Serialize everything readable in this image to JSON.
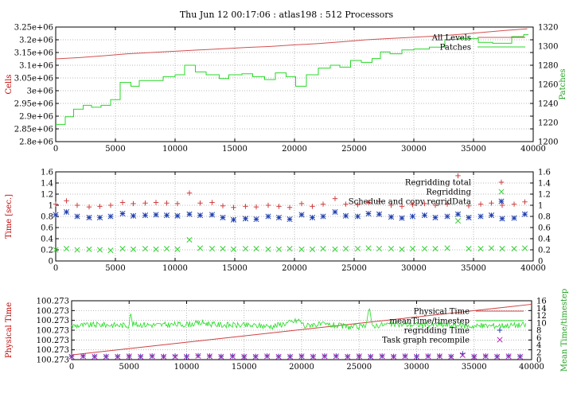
{
  "chart_data": [
    {
      "type": "line",
      "title": "Thu Jun 12 00:17:06 : atlas198 : 512 Processors",
      "ylabel": "Cells",
      "y2label": "Patches",
      "xlim": [
        0,
        40000
      ],
      "ylim": [
        2800000,
        3250000
      ],
      "y2lim": [
        1200,
        1320
      ],
      "x_ticks": [
        "0",
        "5000",
        "10000",
        "15000",
        "20000",
        "25000",
        "30000",
        "35000",
        "40000"
      ],
      "y_ticks": [
        "2.8e+06",
        "2.85e+06",
        "2.9e+06",
        "2.95e+06",
        "3e+06",
        "3.05e+06",
        "3.1e+06",
        "3.15e+06",
        "3.2e+06",
        "3.25e+06"
      ],
      "y2_ticks": [
        "1200",
        "1220",
        "1240",
        "1260",
        "1280",
        "1300",
        "1320"
      ],
      "grid": true,
      "legend": "top-right",
      "colors": {
        "all_levels": "#d45050",
        "patches": "#28d828"
      },
      "series": [
        {
          "name": "All Levels",
          "axis": "y1",
          "color": "#d45050",
          "x": [
            0,
            2000,
            4000,
            6000,
            8000,
            10000,
            12000,
            14000,
            16000,
            18000,
            20000,
            22000,
            24000,
            26000,
            28000,
            30000,
            32000,
            34000,
            36000,
            38000,
            39500
          ],
          "y": [
            3125000,
            3130000,
            3137000,
            3145000,
            3150000,
            3155000,
            3160000,
            3165000,
            3170000,
            3174000,
            3180000,
            3185000,
            3192000,
            3200000,
            3205000,
            3210000,
            3215000,
            3222000,
            3230000,
            3238000,
            3243000
          ]
        },
        {
          "name": "Patches",
          "axis": "y2",
          "color": "#28d828",
          "step": true,
          "x": [
            0,
            800,
            1500,
            2300,
            3000,
            3800,
            4600,
            5400,
            6300,
            7000,
            8000,
            9000,
            10000,
            10800,
            11700,
            12600,
            13700,
            14500,
            15600,
            16500,
            17500,
            18400,
            19300,
            20100,
            21000,
            22000,
            23000,
            23800,
            24700,
            25600,
            26500,
            27200,
            28000,
            29000,
            30000,
            31300,
            32600,
            33800,
            35400,
            36600,
            38200,
            39200
          ],
          "y": [
            1218,
            1226,
            1234,
            1238,
            1236,
            1238,
            1244,
            1262,
            1258,
            1264,
            1264,
            1268,
            1270,
            1280,
            1273,
            1270,
            1266,
            1270,
            1271,
            1268,
            1265,
            1272,
            1268,
            1258,
            1270,
            1277,
            1280,
            1278,
            1285,
            1283,
            1287,
            1294,
            1292,
            1296,
            1297,
            1299,
            1307,
            1308,
            1304,
            1303,
            1310,
            1312
          ]
        }
      ]
    },
    {
      "type": "scatter",
      "ylabel": "Time [sec.]",
      "xlim": [
        0,
        40000
      ],
      "ylim": [
        0,
        1.6
      ],
      "x_ticks": [
        "0",
        "5000",
        "10000",
        "15000",
        "20000",
        "25000",
        "30000",
        "35000",
        "40000"
      ],
      "y_ticks": [
        "0",
        "0.2",
        "0.4",
        "0.6",
        "0.8",
        "1",
        "1.2",
        "1.4",
        "1.6"
      ],
      "grid": true,
      "legend": "top-right",
      "series": [
        {
          "name": "Regridding total",
          "marker": "plus",
          "color": "#d04040",
          "x": [
            0,
            900,
            1800,
            2800,
            3700,
            4600,
            5600,
            6500,
            7500,
            8400,
            9300,
            10200,
            11200,
            12100,
            13100,
            14000,
            14900,
            15900,
            16800,
            17800,
            18700,
            19600,
            20600,
            21500,
            22400,
            23400,
            24300,
            25300,
            26200,
            27100,
            28100,
            29000,
            29900,
            30900,
            31800,
            32800,
            33700,
            34600,
            35600,
            36500,
            37400,
            38400,
            39300
          ],
          "y": [
            1.02,
            1.08,
            1.0,
            0.97,
            0.98,
            1.0,
            1.05,
            1.03,
            1.04,
            1.05,
            1.04,
            1.03,
            1.22,
            1.04,
            1.05,
            0.99,
            0.96,
            0.98,
            0.97,
            1.0,
            0.98,
            0.96,
            1.03,
            0.98,
            1.02,
            1.12,
            1.02,
            1.01,
            1.05,
            1.07,
            1.0,
            0.98,
            1.01,
            1.03,
            1.0,
            1.02,
            1.53,
            0.99,
            1.02,
            1.04,
            1.0,
            1.02,
            1.06
          ]
        },
        {
          "name": "Regridding",
          "marker": "x",
          "color": "#30d030",
          "x": [
            0,
            900,
            1800,
            2800,
            3700,
            4600,
            5600,
            6500,
            7500,
            8400,
            9300,
            10200,
            11200,
            12100,
            13100,
            14000,
            14900,
            15900,
            16800,
            17800,
            18700,
            19600,
            20600,
            21500,
            22400,
            23400,
            24300,
            25300,
            26200,
            27100,
            28100,
            29000,
            29900,
            30900,
            31800,
            32800,
            33700,
            34600,
            35600,
            36500,
            37400,
            38400,
            39300
          ],
          "y": [
            0.2,
            0.22,
            0.2,
            0.21,
            0.2,
            0.19,
            0.22,
            0.21,
            0.22,
            0.21,
            0.22,
            0.21,
            0.38,
            0.23,
            0.22,
            0.22,
            0.21,
            0.22,
            0.22,
            0.21,
            0.21,
            0.22,
            0.21,
            0.21,
            0.22,
            0.21,
            0.22,
            0.22,
            0.23,
            0.22,
            0.22,
            0.21,
            0.22,
            0.22,
            0.22,
            0.23,
            0.72,
            0.22,
            0.22,
            0.23,
            0.22,
            0.22,
            0.23
          ]
        },
        {
          "name": "Schedule and copy regridData",
          "marker": "star",
          "color": "#2040b0",
          "x": [
            0,
            900,
            1800,
            2800,
            3700,
            4600,
            5600,
            6500,
            7500,
            8400,
            9300,
            10200,
            11200,
            12100,
            13100,
            14000,
            14900,
            15900,
            16800,
            17800,
            18700,
            19600,
            20600,
            21500,
            22400,
            23400,
            24300,
            25300,
            26200,
            27100,
            28100,
            29000,
            29900,
            30900,
            31800,
            32800,
            33700,
            34600,
            35600,
            36500,
            37400,
            38400,
            39300
          ],
          "y": [
            0.83,
            0.88,
            0.8,
            0.78,
            0.78,
            0.8,
            0.85,
            0.81,
            0.82,
            0.83,
            0.82,
            0.81,
            0.84,
            0.82,
            0.83,
            0.78,
            0.74,
            0.76,
            0.75,
            0.8,
            0.78,
            0.75,
            0.83,
            0.78,
            0.8,
            0.88,
            0.81,
            0.8,
            0.85,
            0.84,
            0.79,
            0.77,
            0.8,
            0.82,
            0.78,
            0.8,
            0.84,
            0.78,
            0.8,
            0.82,
            0.76,
            0.77,
            0.84
          ]
        }
      ]
    },
    {
      "type": "line",
      "ylabel": "Physical Time",
      "y2label": "Mean Time/timestep",
      "xlim": [
        0,
        40000
      ],
      "ylim": [
        0,
        1
      ],
      "y2lim": [
        0,
        16
      ],
      "x_ticks": [
        "0",
        "5000",
        "10000",
        "15000",
        "20000",
        "25000",
        "30000",
        "35000",
        "40000"
      ],
      "y_ticks": [
        "100.273",
        "100.273",
        "100.273",
        "100.273",
        "100.273",
        "100.273",
        "100.273"
      ],
      "y2_ticks": [
        "0",
        "2",
        "4",
        "6",
        "8",
        "10",
        "12",
        "14",
        "16"
      ],
      "grid": true,
      "legend": "top-right",
      "series": [
        {
          "name": "Physical Time",
          "axis": "y1",
          "color": "#d04040",
          "x": [
            0,
            40000
          ],
          "y": [
            0.08,
            0.94
          ]
        },
        {
          "name": "meanTime/timestep",
          "axis": "y2",
          "color": "#22dd22",
          "noisy": true,
          "x": [
            0,
            2500,
            5000,
            5100,
            5300,
            7500,
            10000,
            11500,
            12500,
            15000,
            17500,
            19800,
            20300,
            20800,
            22500,
            24500,
            25500,
            25900,
            26100,
            26400,
            27500,
            30000,
            32500,
            35000,
            37500,
            39500
          ],
          "y": [
            9.2,
            9.5,
            9.3,
            13.0,
            9.6,
            9.4,
            9.6,
            10.0,
            9.5,
            9.3,
            9.1,
            10.7,
            9.0,
            9.6,
            9.4,
            8.8,
            8.9,
            14.2,
            9.0,
            9.3,
            9.6,
            9.5,
            9.4,
            9.1,
            9.3,
            9.4
          ]
        },
        {
          "name": "regridding Time",
          "axis": "y2",
          "marker": "plus",
          "color": "#2040b0",
          "x": [
            0,
            1000,
            2000,
            3000,
            4000,
            5000,
            6000,
            7000,
            8000,
            9000,
            10000,
            11000,
            12000,
            13000,
            14000,
            15000,
            16000,
            17000,
            18000,
            19000,
            20000,
            21000,
            22000,
            23000,
            24000,
            25000,
            26000,
            27000,
            28000,
            29000,
            30000,
            31000,
            32000,
            33000,
            34000,
            35000,
            36000,
            37000,
            38000,
            39000
          ],
          "y": [
            0.9,
            1.0,
            0.9,
            0.9,
            0.9,
            1.0,
            0.9,
            1.0,
            0.9,
            1.0,
            0.9,
            1.1,
            1.0,
            0.9,
            1.0,
            0.9,
            0.9,
            1.0,
            0.9,
            0.9,
            1.0,
            0.9,
            1.0,
            1.0,
            0.9,
            1.0,
            0.9,
            1.0,
            0.9,
            1.0,
            0.9,
            1.0,
            1.0,
            0.9,
            1.6,
            0.9,
            1.0,
            0.9,
            1.0,
            0.9
          ]
        },
        {
          "name": "Task graph recompile",
          "axis": "y2",
          "marker": "x",
          "color": "#b020b0",
          "x": [
            0,
            1000,
            2000,
            3000,
            4000,
            5000,
            6000,
            7000,
            8000,
            9000,
            10000,
            11000,
            12000,
            13000,
            14000,
            15000,
            16000,
            17000,
            18000,
            19000,
            20000,
            21000,
            22000,
            23000,
            24000,
            25000,
            26000,
            27000,
            28000,
            29000,
            30000,
            31000,
            32000,
            33000,
            34000,
            35000,
            36000,
            37000,
            38000,
            39000
          ],
          "y": [
            0.8,
            0.9,
            0.8,
            0.8,
            0.8,
            0.9,
            0.8,
            0.9,
            0.8,
            0.8,
            0.8,
            1.0,
            0.9,
            0.8,
            0.9,
            0.8,
            0.8,
            0.9,
            0.8,
            0.8,
            0.9,
            0.8,
            0.9,
            0.9,
            0.8,
            0.9,
            0.8,
            0.9,
            0.8,
            0.9,
            0.8,
            0.9,
            0.9,
            0.8,
            1.2,
            0.8,
            0.9,
            0.8,
            0.9,
            0.8
          ]
        }
      ]
    }
  ]
}
